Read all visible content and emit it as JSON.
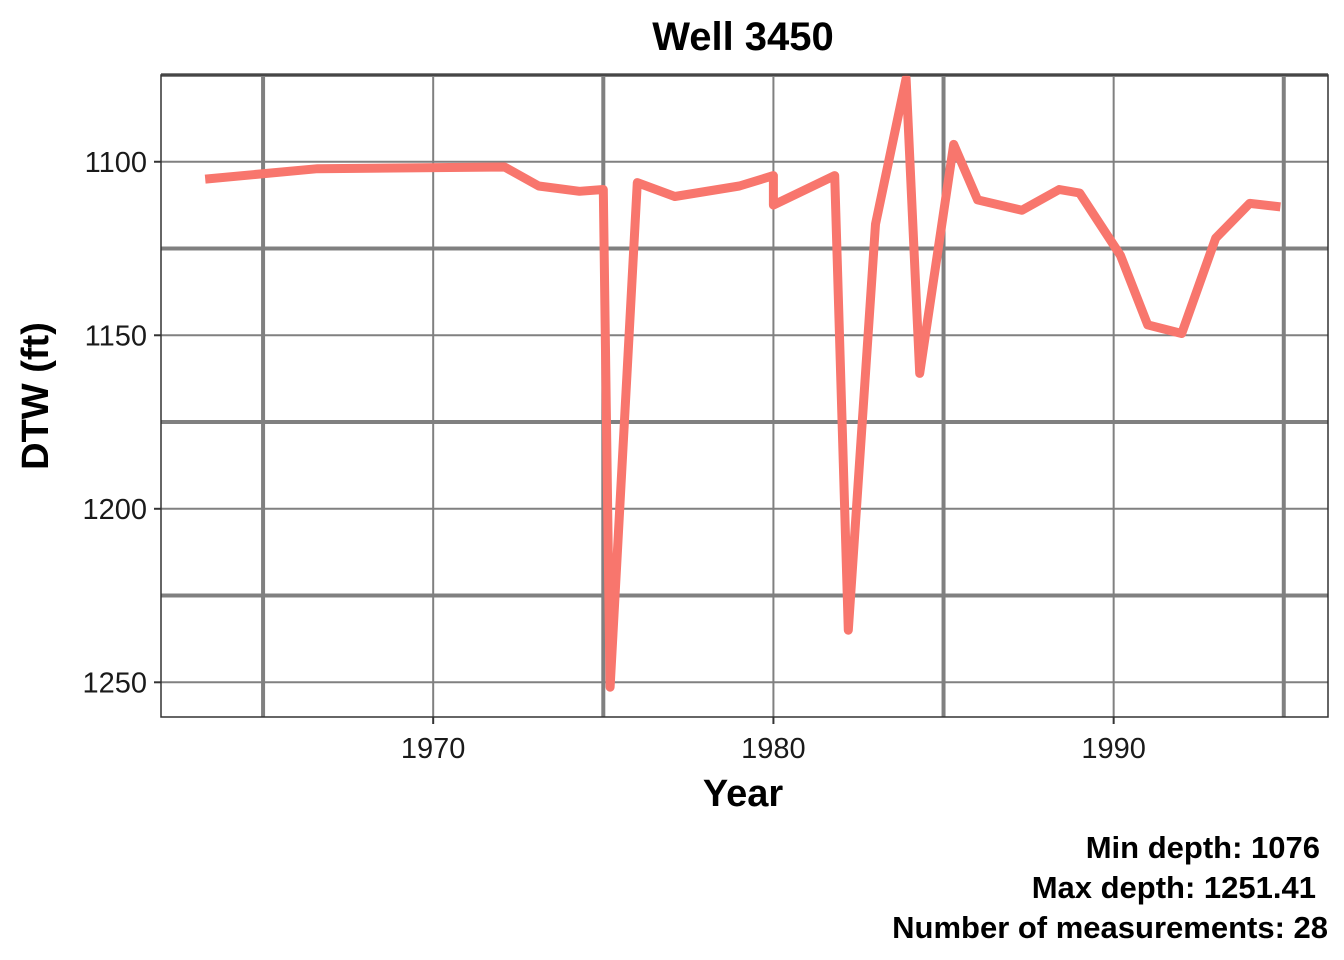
{
  "chart_data": {
    "type": "line",
    "title": "Well 3450",
    "xlabel": "Year",
    "ylabel": "DTW (ft)",
    "y_reversed": true,
    "xlim": [
      1962.0,
      1996.3
    ],
    "ylim": [
      1260,
      1075
    ],
    "x_ticks": [
      1970,
      1980,
      1990
    ],
    "x_tick_labels": [
      "1970",
      "1980",
      "1990"
    ],
    "x_minor_grid": [
      1965,
      1975,
      1985,
      1995
    ],
    "y_ticks": [
      1100,
      1150,
      1200,
      1250
    ],
    "y_tick_labels": [
      "1100",
      "1150",
      "1200",
      "1250"
    ],
    "y_minor_grid": [
      1075,
      1125,
      1175,
      1225
    ],
    "grid": true,
    "line_color": "#F8766D",
    "grid_color": "#808080",
    "series": [
      {
        "x": [
          1963.3,
          1966.6,
          1972.1,
          1973.1,
          1974.3,
          1975.0,
          1975.2,
          1976.0,
          1977.1,
          1979.0,
          1980.0,
          1980.0,
          1981.8,
          1982.2,
          1983.0,
          1983.9,
          1984.3,
          1985.3,
          1986.0,
          1987.3,
          1988.4,
          1989.0,
          1990.2,
          1991.0,
          1992.0,
          1993.0,
          1994.0,
          1994.9
        ],
        "y": [
          1105,
          1102,
          1101.5,
          1107,
          1108.5,
          1108,
          1251.41,
          1106,
          1110,
          1107,
          1104,
          1112.5,
          1104,
          1235,
          1118,
          1076,
          1161,
          1095,
          1111,
          1114,
          1108,
          1109,
          1127,
          1147,
          1149.5,
          1122,
          1112,
          1113
        ]
      }
    ]
  },
  "captions": {
    "min_depth": "Min depth: 1076",
    "max_depth": "Max depth: 1251.41",
    "count": "Number of measurements: 28"
  }
}
